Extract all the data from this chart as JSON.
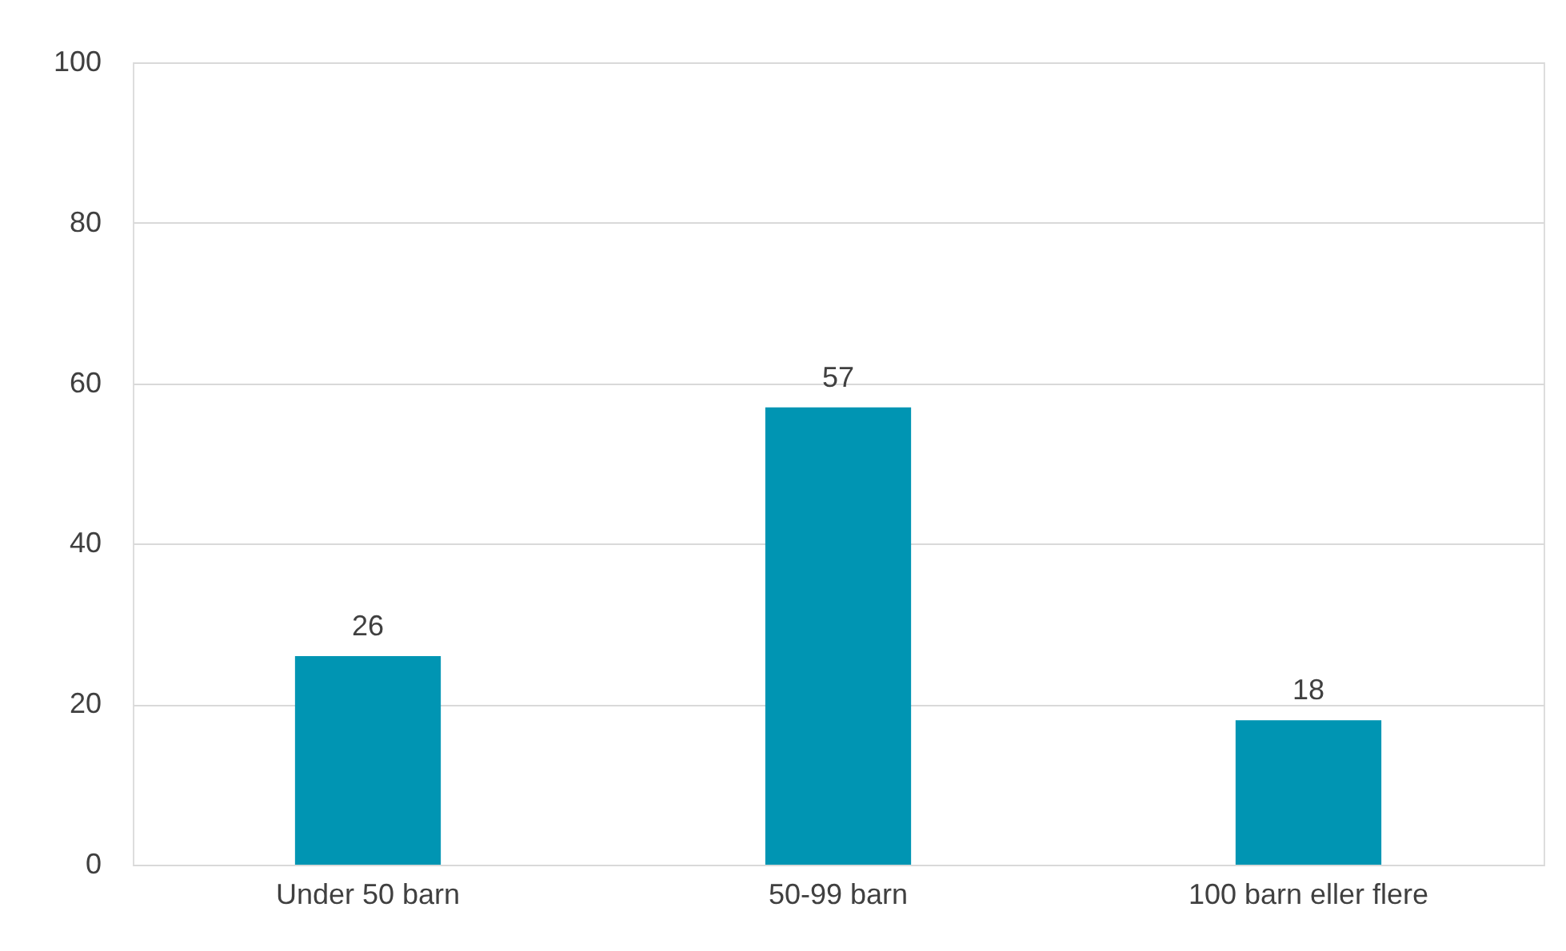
{
  "chart_data": {
    "type": "bar",
    "categories": [
      "Under 50 barn",
      "50-99 barn",
      "100 barn eller flere"
    ],
    "values": [
      26,
      57,
      18
    ],
    "color": "#0095b3",
    "ylim": [
      0,
      100
    ],
    "yticks": [
      0,
      20,
      40,
      60,
      80,
      100
    ],
    "grid": "y",
    "data_labels": true
  }
}
